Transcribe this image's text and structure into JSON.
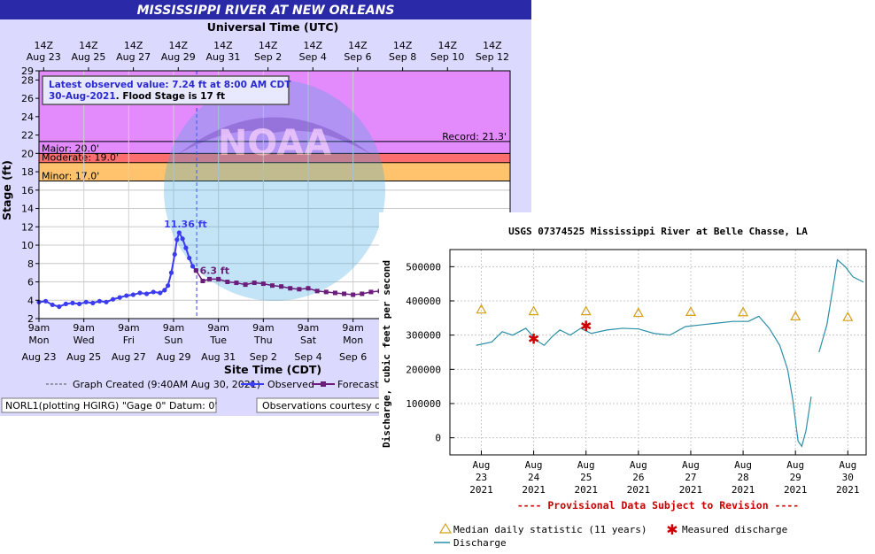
{
  "chart_data": [
    {
      "type": "line",
      "title": "MISSISSIPPI RIVER AT NEW ORLEANS",
      "top_axis_title": "Universal Time (UTC)",
      "top_ticks": [
        [
          "14Z",
          "Aug 23"
        ],
        [
          "14Z",
          "Aug 25"
        ],
        [
          "14Z",
          "Aug 27"
        ],
        [
          "14Z",
          "Aug 29"
        ],
        [
          "14Z",
          "Aug 31"
        ],
        [
          "14Z",
          "Sep 2"
        ],
        [
          "14Z",
          "Sep 4"
        ],
        [
          "14Z",
          "Sep 6"
        ],
        [
          "14Z",
          "Sep 8"
        ],
        [
          "14Z",
          "Sep 10"
        ],
        [
          "14Z",
          "Sep 12"
        ]
      ],
      "bottom_axis_title": "Site Time (CDT)",
      "bottom_ticks": [
        [
          "9am",
          "Mon",
          "Aug 23"
        ],
        [
          "9am",
          "Wed",
          "Aug 25"
        ],
        [
          "9am",
          "Fri",
          "Aug 27"
        ],
        [
          "9am",
          "Sun",
          "Aug 29"
        ],
        [
          "9am",
          "Tue",
          "Aug 31"
        ],
        [
          "9am",
          "Thu",
          "Sep 2"
        ],
        [
          "9am",
          "Sat",
          "Sep 4"
        ],
        [
          "9am",
          "Mon",
          "Sep 6"
        ]
      ],
      "ylabel": "Stage (ft)",
      "ylim": [
        2,
        29
      ],
      "yticks": [
        2,
        4,
        6,
        8,
        10,
        12,
        14,
        16,
        18,
        20,
        22,
        24,
        26,
        28,
        29
      ],
      "x_units": "days since Aug 23 9am CDT",
      "xlim": [
        0,
        21
      ],
      "flood_categories": [
        {
          "label": "Minor: 17.0'",
          "from": 17,
          "to": 19,
          "color": "#ffc36e"
        },
        {
          "label": "Moderate: 19.0'",
          "from": 19,
          "to": 20,
          "color": "#ff6e6e"
        },
        {
          "label": "Major: 20.0'",
          "from": 20,
          "to": 29,
          "color": "#e38afc"
        }
      ],
      "record": {
        "label": "Record: 21.3'",
        "value": 21.3
      },
      "graph_created_x": 7.03,
      "info_box": {
        "line1": "Latest observed value: 7.24 ft at 8:00 AM CDT",
        "line2_date": "30-Aug-2021",
        "line2_rest": ". Flood Stage is 17 ft"
      },
      "annotations": [
        {
          "text": "11.36 ft",
          "x": 6.2,
          "y": 11.36
        },
        {
          "text": "6.3 ft",
          "x": 7.8,
          "y": 6.3
        }
      ],
      "series": [
        {
          "name": "Observed",
          "color": "#3b3bf0",
          "points": [
            [
              0,
              3.8
            ],
            [
              0.3,
              3.9
            ],
            [
              0.6,
              3.5
            ],
            [
              0.9,
              3.3
            ],
            [
              1.2,
              3.6
            ],
            [
              1.5,
              3.7
            ],
            [
              1.8,
              3.6
            ],
            [
              2.1,
              3.8
            ],
            [
              2.4,
              3.7
            ],
            [
              2.7,
              3.9
            ],
            [
              3.0,
              3.8
            ],
            [
              3.3,
              4.1
            ],
            [
              3.6,
              4.3
            ],
            [
              3.9,
              4.5
            ],
            [
              4.2,
              4.6
            ],
            [
              4.5,
              4.8
            ],
            [
              4.8,
              4.7
            ],
            [
              5.1,
              4.9
            ],
            [
              5.4,
              4.8
            ],
            [
              5.6,
              5.1
            ],
            [
              5.75,
              5.6
            ],
            [
              5.9,
              7.0
            ],
            [
              6.05,
              9.0
            ],
            [
              6.15,
              10.6
            ],
            [
              6.25,
              11.36
            ],
            [
              6.4,
              10.7
            ],
            [
              6.55,
              9.7
            ],
            [
              6.7,
              8.6
            ],
            [
              6.85,
              7.7
            ],
            [
              7.0,
              7.24
            ]
          ]
        },
        {
          "name": "Forecast",
          "color": "#6a1d7a",
          "points": [
            [
              7.0,
              7.24
            ],
            [
              7.3,
              6.1
            ],
            [
              7.6,
              6.3
            ],
            [
              8.0,
              6.3
            ],
            [
              8.4,
              6.0
            ],
            [
              8.8,
              5.9
            ],
            [
              9.2,
              5.7
            ],
            [
              9.6,
              5.9
            ],
            [
              10.0,
              5.8
            ],
            [
              10.4,
              5.6
            ],
            [
              10.8,
              5.5
            ],
            [
              11.2,
              5.3
            ],
            [
              11.6,
              5.2
            ],
            [
              12.0,
              5.3
            ],
            [
              12.4,
              5.0
            ],
            [
              12.8,
              4.9
            ],
            [
              13.2,
              4.8
            ],
            [
              13.6,
              4.7
            ],
            [
              14.0,
              4.6
            ],
            [
              14.4,
              4.7
            ],
            [
              14.8,
              4.9
            ],
            [
              15.2,
              5.0
            ],
            [
              15.6,
              5.1
            ],
            [
              16.0,
              5.2
            ]
          ]
        }
      ],
      "legend": {
        "created": "Graph Created (9:40AM Aug 30, 2021)",
        "observed": "Observed",
        "forecast": "Forecast"
      },
      "footer_left": "NORL1(plotting HGIRG) \"Gage 0\" Datum:  0'",
      "footer_right": "Observations courtesy of",
      "watermark_text": "NOAA"
    },
    {
      "type": "line",
      "title": "USGS 07374525 Mississippi River at Belle Chasse, LA",
      "ylabel": "Discharge, cubic feet per second",
      "ylim": [
        -50000,
        550000
      ],
      "yticks": [
        0,
        100000,
        200000,
        300000,
        400000,
        500000
      ],
      "x_units": "days since Aug 23 00:00",
      "xlim": [
        -0.6,
        7.35
      ],
      "xticks": [
        [
          "Aug",
          "23",
          "2021"
        ],
        [
          "Aug",
          "24",
          "2021"
        ],
        [
          "Aug",
          "25",
          "2021"
        ],
        [
          "Aug",
          "26",
          "2021"
        ],
        [
          "Aug",
          "27",
          "2021"
        ],
        [
          "Aug",
          "28",
          "2021"
        ],
        [
          "Aug",
          "29",
          "2021"
        ],
        [
          "Aug",
          "30",
          "2021"
        ]
      ],
      "provisional_note": "---- Provisional Data Subject to Revision ----",
      "series": [
        {
          "name": "Median daily statistic (11 years)",
          "color": "#d4a017",
          "points": [
            [
              0,
              375000
            ],
            [
              1,
              370000
            ],
            [
              2,
              370000
            ],
            [
              3,
              365000
            ],
            [
              4,
              368000
            ],
            [
              5,
              367000
            ],
            [
              6,
              355000
            ],
            [
              7,
              353000
            ]
          ]
        },
        {
          "name": "Measured discharge",
          "color": "#cc0000",
          "points": [
            [
              1.0,
              290000
            ],
            [
              2.0,
              327000
            ]
          ]
        },
        {
          "name": "Discharge",
          "color": "#2a8fa8",
          "points": [
            [
              -0.1,
              270000
            ],
            [
              0.2,
              280000
            ],
            [
              0.4,
              310000
            ],
            [
              0.6,
              300000
            ],
            [
              0.85,
              320000
            ],
            [
              1.05,
              285000
            ],
            [
              1.2,
              270000
            ],
            [
              1.35,
              295000
            ],
            [
              1.5,
              315000
            ],
            [
              1.7,
              300000
            ],
            [
              1.9,
              320000
            ],
            [
              2.1,
              305000
            ],
            [
              2.4,
              315000
            ],
            [
              2.7,
              320000
            ],
            [
              3.0,
              318000
            ],
            [
              3.3,
              305000
            ],
            [
              3.6,
              300000
            ],
            [
              3.9,
              325000
            ],
            [
              4.2,
              330000
            ],
            [
              4.5,
              335000
            ],
            [
              4.8,
              340000
            ],
            [
              5.1,
              340000
            ],
            [
              5.3,
              355000
            ],
            [
              5.5,
              320000
            ],
            [
              5.7,
              270000
            ],
            [
              5.85,
              200000
            ],
            [
              5.95,
              110000
            ],
            [
              6.05,
              -10000
            ],
            [
              6.12,
              -25000
            ],
            [
              6.2,
              20000
            ],
            [
              6.3,
              120000
            ],
            [
              6.45,
              250000
            ],
            [
              6.6,
              330000
            ],
            [
              6.75,
              470000
            ],
            [
              6.8,
              520000
            ],
            [
              6.95,
              500000
            ],
            [
              7.1,
              470000
            ],
            [
              7.3,
              455000
            ]
          ]
        }
      ],
      "legend": {
        "median": "Median daily statistic (11 years)",
        "measured": "Measured discharge",
        "discharge": "Discharge"
      }
    }
  ]
}
